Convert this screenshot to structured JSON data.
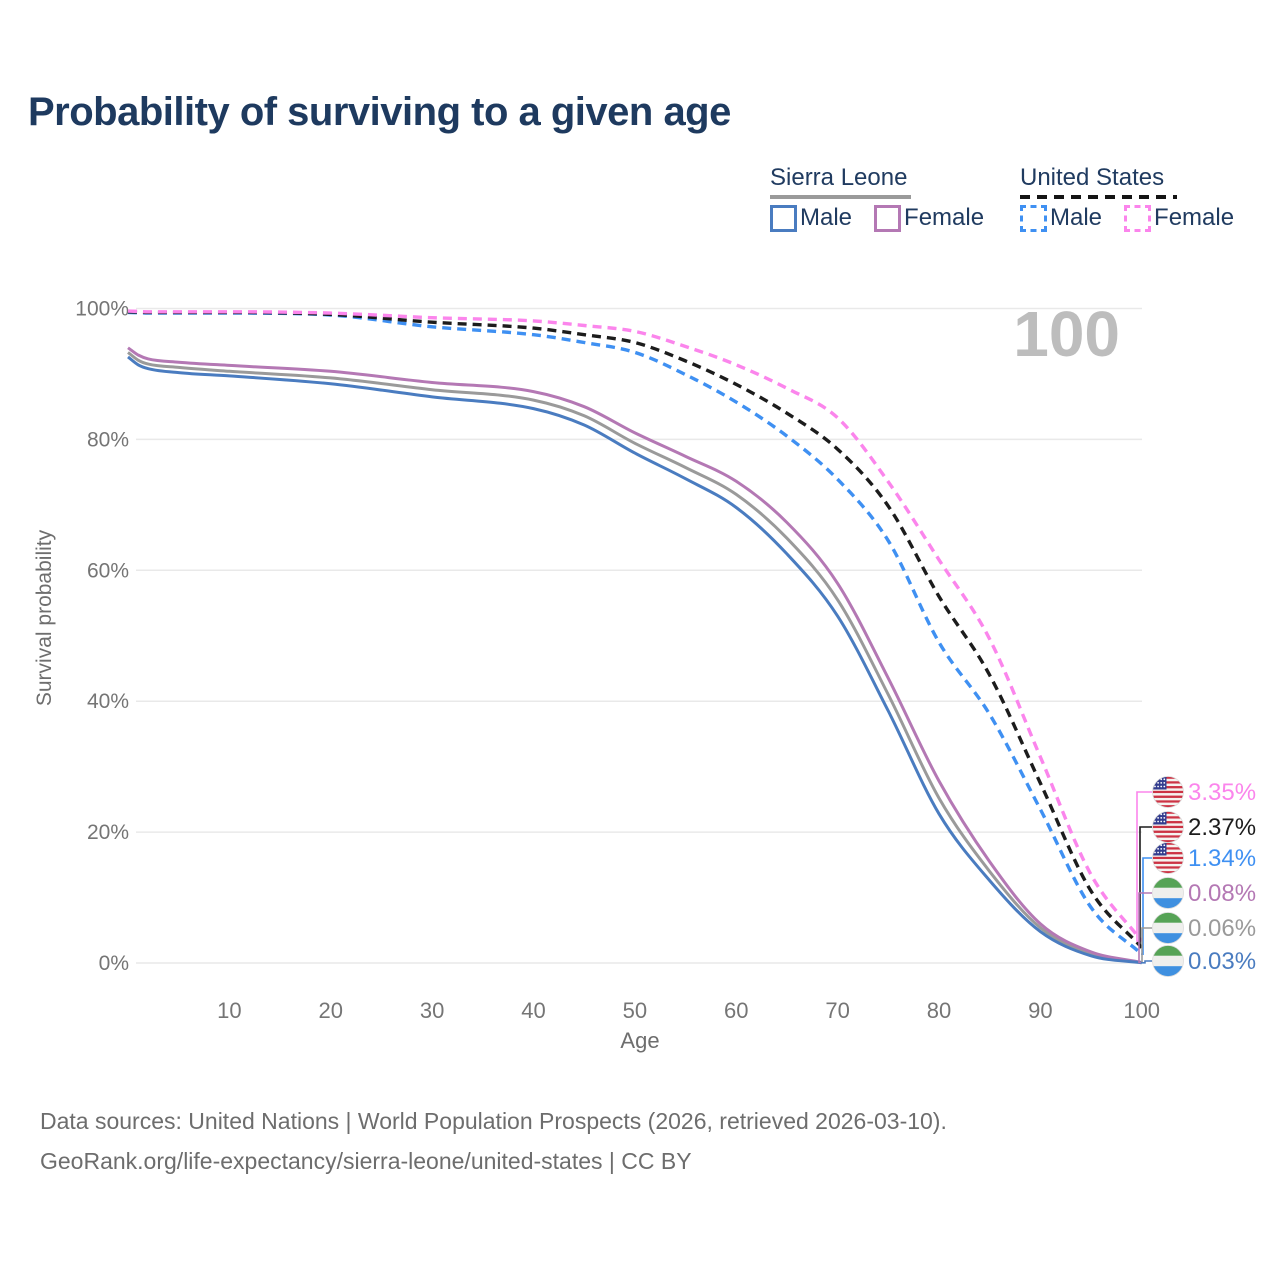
{
  "title": "Probability of surviving to a given age",
  "watermark": "100",
  "legend": {
    "groups": [
      {
        "label": "Sierra Leone",
        "underline_style": "solid",
        "underline_color": "#9a9a9a",
        "items": [
          {
            "label": "Male",
            "color": "#4a7cc0",
            "dash": false
          },
          {
            "label": "Female",
            "color": "#b478b4",
            "dash": false
          }
        ]
      },
      {
        "label": "United States",
        "underline_style": "dashed",
        "underline_color": "#141414",
        "items": [
          {
            "label": "Male",
            "color": "#3f90f2",
            "dash": true
          },
          {
            "label": "Female",
            "color": "#fb85ec",
            "dash": true
          }
        ]
      }
    ]
  },
  "axes": {
    "y_title": "Survival probability",
    "x_title": "Age",
    "y_ticks": [
      {
        "value": 0,
        "label": "0%"
      },
      {
        "value": 20,
        "label": "20%"
      },
      {
        "value": 40,
        "label": "40%"
      },
      {
        "value": 60,
        "label": "60%"
      },
      {
        "value": 80,
        "label": "80%"
      },
      {
        "value": 100,
        "label": "100%"
      }
    ],
    "x_ticks": [
      {
        "value": 10,
        "label": "10"
      },
      {
        "value": 20,
        "label": "20"
      },
      {
        "value": 30,
        "label": "30"
      },
      {
        "value": 40,
        "label": "40"
      },
      {
        "value": 50,
        "label": "50"
      },
      {
        "value": 60,
        "label": "60"
      },
      {
        "value": 70,
        "label": "70"
      },
      {
        "value": 80,
        "label": "80"
      },
      {
        "value": 90,
        "label": "90"
      },
      {
        "value": 100,
        "label": "100"
      }
    ]
  },
  "end_labels": [
    {
      "series_key": "us-female",
      "value_label": "3.35%",
      "color": "#fb85ec",
      "flag": "us",
      "icon": "us-flag-icon"
    },
    {
      "series_key": "us-total",
      "value_label": "2.37%",
      "color": "#1c1c1c",
      "flag": "us",
      "icon": "us-flag-icon"
    },
    {
      "series_key": "us-male",
      "value_label": "1.34%",
      "color": "#3f90f2",
      "flag": "us",
      "icon": "us-flag-icon"
    },
    {
      "series_key": "sl-female",
      "value_label": "0.08%",
      "color": "#b478b4",
      "flag": "sl",
      "icon": "sierra-leone-flag-icon"
    },
    {
      "series_key": "sl-total",
      "value_label": "0.06%",
      "color": "#9a9a9a",
      "flag": "sl",
      "icon": "sierra-leone-flag-icon"
    },
    {
      "series_key": "sl-male",
      "value_label": "0.03%",
      "color": "#4a7cc0",
      "flag": "sl",
      "icon": "sierra-leone-flag-icon"
    }
  ],
  "footer": {
    "line1": "Data sources: United Nations | World Population Prospects (2026, retrieved 2026-03-10).",
    "line2": "GeoRank.org/life-expectancy/sierra-leone/united-states | CC BY"
  },
  "flag_colors": {
    "us_red": "#cc3344",
    "us_white": "#f5f3f0",
    "us_canton": "#333d8f",
    "sl_green": "#56a356",
    "sl_white": "#efefed",
    "sl_blue": "#3f90e0"
  },
  "chart_data": {
    "type": "line",
    "title": "Probability of surviving to a given age",
    "xlabel": "Age",
    "ylabel": "Survival probability",
    "xlim": [
      0,
      100
    ],
    "ylim": [
      0,
      100
    ],
    "grid": true,
    "legend_position": "top-right",
    "x": [
      0,
      1,
      2,
      5,
      10,
      20,
      30,
      40,
      45,
      50,
      55,
      60,
      65,
      70,
      75,
      80,
      85,
      90,
      95,
      100
    ],
    "series": [
      {
        "key": "sl-total",
        "name": "Sierra Leone",
        "sex": "all",
        "color": "#9a9a9a",
        "dash": false,
        "values": [
          93.3,
          92.1,
          91.5,
          91.0,
          90.4,
          89.4,
          87.6,
          86.0,
          83.6,
          79.4,
          75.7,
          71.6,
          64.9,
          55.5,
          41.0,
          25.2,
          14.0,
          5.4,
          1.4,
          0.06
        ]
      },
      {
        "key": "sl-female",
        "name": "Sierra Leone Female",
        "sex": "female",
        "color": "#b478b4",
        "dash": false,
        "values": [
          94.0,
          92.9,
          92.3,
          91.8,
          91.3,
          90.4,
          88.7,
          87.3,
          85.0,
          81.0,
          77.4,
          73.6,
          67.3,
          58.0,
          43.5,
          27.8,
          15.5,
          6.0,
          1.7,
          0.08
        ]
      },
      {
        "key": "sl-male",
        "name": "Sierra Leone Male",
        "sex": "male",
        "color": "#4a7cc0",
        "dash": false,
        "values": [
          92.6,
          91.4,
          90.8,
          90.2,
          89.7,
          88.5,
          86.5,
          84.7,
          82.2,
          77.9,
          74.0,
          69.6,
          62.5,
          53.0,
          38.5,
          22.8,
          12.6,
          4.8,
          1.1,
          0.03
        ]
      },
      {
        "key": "us-male",
        "name": "United States Male",
        "sex": "male",
        "color": "#3f90f2",
        "dash": true,
        "values": [
          99.4,
          99.35,
          99.3,
          99.3,
          99.3,
          99.0,
          97.2,
          96.0,
          94.8,
          93.3,
          89.9,
          85.7,
          80.5,
          73.9,
          64.5,
          49.0,
          38.0,
          23.5,
          8.5,
          1.34
        ]
      },
      {
        "key": "us-total",
        "name": "United States",
        "sex": "all",
        "color": "#1c1c1c",
        "dash": true,
        "values": [
          99.5,
          99.45,
          99.4,
          99.4,
          99.4,
          99.1,
          97.9,
          97.0,
          96.0,
          94.8,
          92.0,
          88.4,
          84.0,
          78.5,
          69.8,
          56.0,
          44.0,
          27.5,
          11.0,
          2.37
        ]
      },
      {
        "key": "us-female",
        "name": "United States Female",
        "sex": "female",
        "color": "#fb85ec",
        "dash": true,
        "values": [
          99.6,
          99.55,
          99.5,
          99.5,
          99.5,
          99.3,
          98.6,
          98.1,
          97.4,
          96.5,
          94.2,
          91.4,
          87.8,
          83.3,
          73.5,
          61.6,
          49.5,
          31.5,
          13.5,
          3.35
        ]
      }
    ]
  }
}
